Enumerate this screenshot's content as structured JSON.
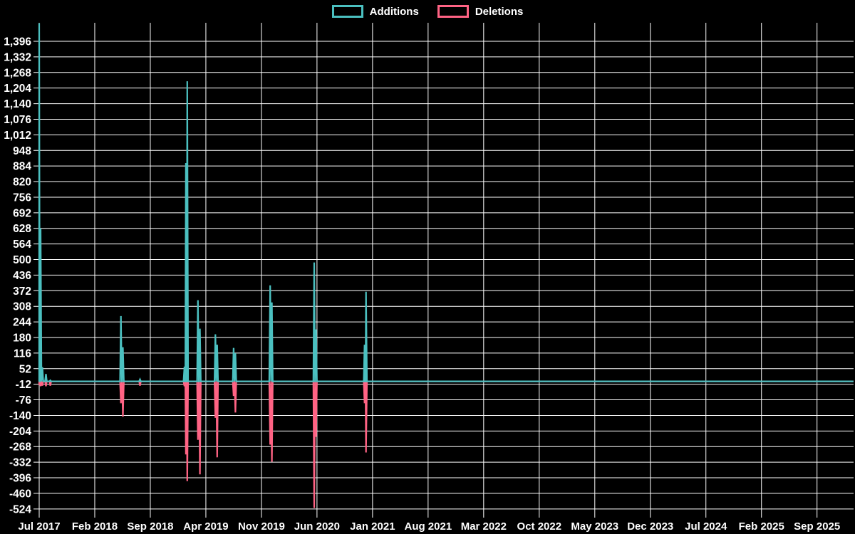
{
  "legend": {
    "items": [
      {
        "label": "Additions",
        "color": "#4bc0c0"
      },
      {
        "label": "Deletions",
        "color": "#ff6384"
      }
    ]
  },
  "chart_data": {
    "type": "line",
    "title": "",
    "legend_position": "top",
    "grid": true,
    "background_color": "#000000",
    "grid_color": "#ffffff",
    "text_color": "#ffffff",
    "series": [
      {
        "name": "Additions",
        "color": "#4bc0c0"
      },
      {
        "name": "Deletions",
        "color": "#ff6384"
      }
    ],
    "x_axis": {
      "tick_labels": [
        "Jul 2017",
        "Feb 2018",
        "Sep 2018",
        "Apr 2019",
        "Nov 2019",
        "Jun 2020",
        "Jan 2021",
        "Aug 2021",
        "Mar 2022",
        "Oct 2022",
        "May 2023",
        "Dec 2023",
        "Jul 2024",
        "Feb 2025",
        "Sep 2025"
      ],
      "tick_positions_months": [
        0,
        7,
        14,
        21,
        28,
        35,
        42,
        49,
        56,
        63,
        70,
        77,
        84,
        91,
        98
      ],
      "unit": "months since Jul 2017",
      "range_months": [
        0,
        102.6
      ]
    },
    "y_axis": {
      "tick_values": [
        1396,
        1332,
        1268,
        1204,
        1140,
        1076,
        1012,
        948,
        884,
        820,
        756,
        692,
        628,
        564,
        500,
        436,
        372,
        308,
        244,
        180,
        116,
        52,
        -12,
        -76,
        -140,
        -204,
        -268,
        -332,
        -396,
        -460,
        -524
      ],
      "tick_labels": [
        "1,396",
        "1,332",
        "1,268",
        "1,204",
        "1,140",
        "1,076",
        "1,012",
        "948",
        "884",
        "820",
        "756",
        "692",
        "628",
        "564",
        "500",
        "436",
        "372",
        "308",
        "244",
        "180",
        "116",
        "52",
        "-12",
        "-76",
        "-140",
        "-204",
        "-268",
        "-332",
        "-396",
        "-460",
        "-524"
      ],
      "visible_range": [
        -545,
        1472
      ]
    },
    "baseline_value": 0,
    "points": [
      {
        "t_months": 0.0,
        "approx_date": "2017-07",
        "additions": 1470,
        "deletions": -15
      },
      {
        "t_months": 0.18,
        "approx_date": "2017-07",
        "additions": 628,
        "deletions": -20
      },
      {
        "t_months": 0.4,
        "approx_date": "2017-07",
        "additions": 58,
        "deletions": -18
      },
      {
        "t_months": 0.85,
        "approx_date": "2017-08",
        "additions": 30,
        "deletions": -20
      },
      {
        "t_months": 1.4,
        "approx_date": "2017-08",
        "additions": 4,
        "deletions": -18
      },
      {
        "t_months": 10.3,
        "approx_date": "2018-05",
        "additions": 268,
        "deletions": -90
      },
      {
        "t_months": 10.55,
        "approx_date": "2018-05",
        "additions": 140,
        "deletions": -145
      },
      {
        "t_months": 12.7,
        "approx_date": "2018-07",
        "additions": 8,
        "deletions": -18
      },
      {
        "t_months": 18.3,
        "approx_date": "2019-01",
        "additions": 60,
        "deletions": -20
      },
      {
        "t_months": 18.48,
        "approx_date": "2019-01",
        "additions": 896,
        "deletions": -300
      },
      {
        "t_months": 18.65,
        "approx_date": "2019-01",
        "additions": 1232,
        "deletions": -410
      },
      {
        "t_months": 20.0,
        "approx_date": "2019-03",
        "additions": 333,
        "deletions": -240
      },
      {
        "t_months": 20.25,
        "approx_date": "2019-03",
        "additions": 216,
        "deletions": -382
      },
      {
        "t_months": 22.2,
        "approx_date": "2019-05",
        "additions": 193,
        "deletions": -150
      },
      {
        "t_months": 22.42,
        "approx_date": "2019-05",
        "additions": 150,
        "deletions": -312
      },
      {
        "t_months": 24.5,
        "approx_date": "2019-07",
        "additions": 137,
        "deletions": -60
      },
      {
        "t_months": 24.72,
        "approx_date": "2019-08",
        "additions": 115,
        "deletions": -128
      },
      {
        "t_months": 29.1,
        "approx_date": "2019-12",
        "additions": 394,
        "deletions": -260
      },
      {
        "t_months": 29.32,
        "approx_date": "2019-12",
        "additions": 324,
        "deletions": -330
      },
      {
        "t_months": 34.65,
        "approx_date": "2020-05",
        "additions": 488,
        "deletions": -520
      },
      {
        "t_months": 34.88,
        "approx_date": "2020-06",
        "additions": 213,
        "deletions": -228
      },
      {
        "t_months": 41.0,
        "approx_date": "2020-12",
        "additions": 150,
        "deletions": -90
      },
      {
        "t_months": 41.18,
        "approx_date": "2020-12",
        "additions": 368,
        "deletions": -292
      }
    ]
  }
}
